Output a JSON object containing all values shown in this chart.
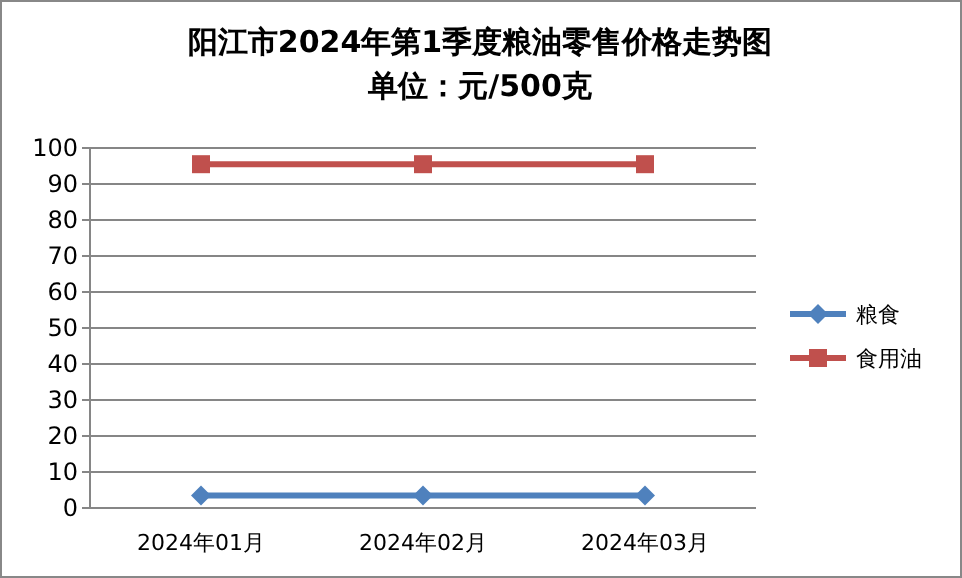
{
  "chart_data": {
    "type": "line",
    "title": "阳江市2024年第1季度粮油零售价格走势图",
    "subtitle": "单位：元/500克",
    "categories": [
      "2024年01月",
      "2024年02月",
      "2024年03月"
    ],
    "series": [
      {
        "name": "粮食",
        "color": "#4f81bd",
        "values": [
          3.5,
          3.5,
          3.5
        ],
        "marker": "diamond"
      },
      {
        "name": "食用油",
        "color": "#c0504d",
        "values": [
          95.5,
          95.5,
          95.5
        ],
        "marker": "square"
      }
    ],
    "ylim": [
      0,
      100
    ],
    "yticks": [
      0,
      10,
      20,
      30,
      40,
      50,
      60,
      70,
      80,
      90,
      100
    ],
    "grid": "y",
    "legend": "right"
  }
}
